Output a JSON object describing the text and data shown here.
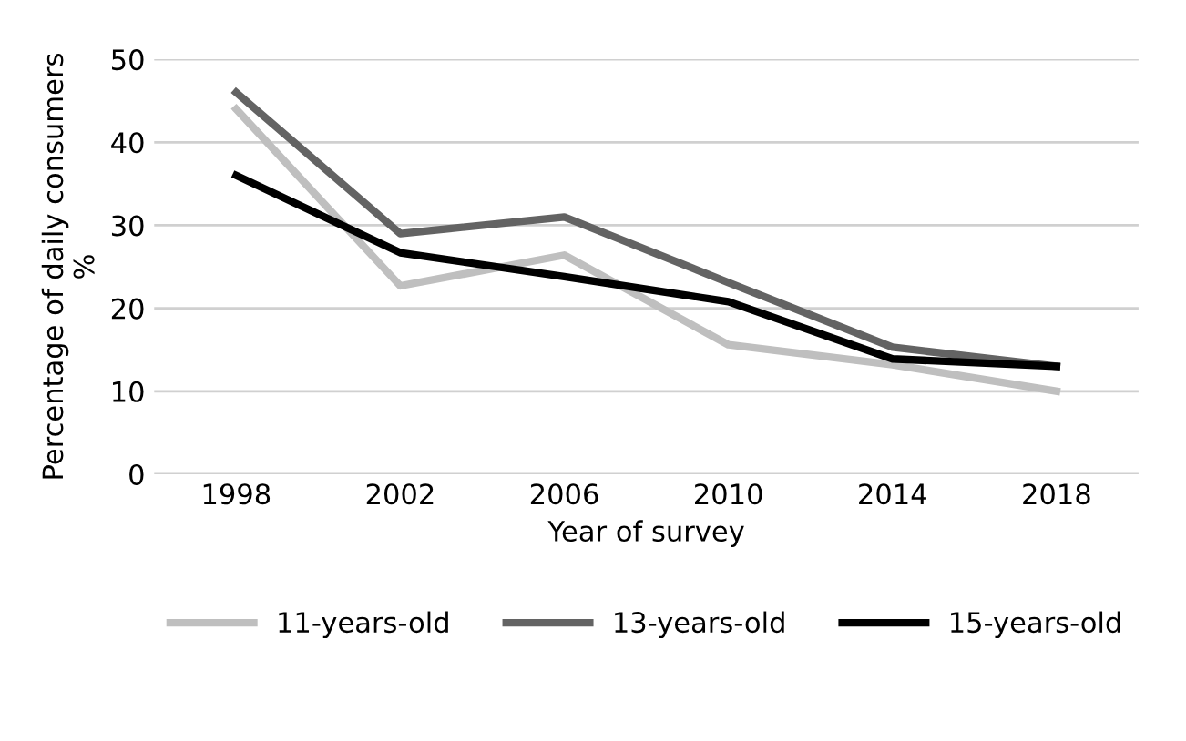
{
  "chart_data": {
    "type": "line",
    "xlabel": "Year of survey",
    "ylabel": "Percentage of daily consumers\n%",
    "categories": [
      "1998",
      "2002",
      "2006",
      "2010",
      "2014",
      "2018"
    ],
    "series": [
      {
        "name": "11-years-old",
        "color": "#bfbfbf",
        "values": [
          44,
          22.7,
          26.4,
          15.6,
          13.2,
          10
        ]
      },
      {
        "name": "13-years-old",
        "color": "#636363",
        "values": [
          46,
          29,
          31,
          23.1,
          15.3,
          13
        ]
      },
      {
        "name": "15-years-old",
        "color": "#000000",
        "values": [
          36,
          26.7,
          23.8,
          20.8,
          13.9,
          13
        ]
      }
    ],
    "ylim": [
      0,
      50
    ],
    "yticks": [
      0,
      10,
      20,
      30,
      40,
      50
    ],
    "grid": "y",
    "legend": "bottom",
    "marker": "none",
    "line_style": "solid"
  }
}
